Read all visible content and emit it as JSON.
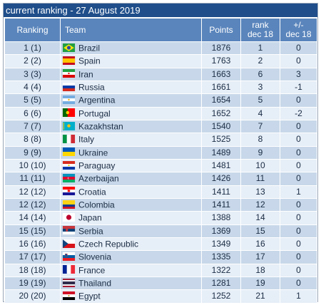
{
  "title": "current ranking - 27 August 2019",
  "columns": {
    "ranking": "Ranking",
    "team": "Team",
    "points": "Points",
    "rank_line1": "rank",
    "rank_line2": "dec 18",
    "change_line1": "+/-",
    "change_line2": "dec 18"
  },
  "rows": [
    {
      "ranking": "1 (1)",
      "team": "Brazil",
      "points": "1876",
      "rank": "1",
      "change": "0",
      "flag": "brazil-flag-icon"
    },
    {
      "ranking": "2 (2)",
      "team": "Spain",
      "points": "1763",
      "rank": "2",
      "change": "0",
      "flag": "spain-flag-icon"
    },
    {
      "ranking": "3 (3)",
      "team": "Iran",
      "points": "1663",
      "rank": "6",
      "change": "3",
      "flag": "iran-flag-icon"
    },
    {
      "ranking": "4 (4)",
      "team": "Russia",
      "points": "1661",
      "rank": "3",
      "change": "-1",
      "flag": "russia-flag-icon"
    },
    {
      "ranking": "5 (5)",
      "team": "Argentina",
      "points": "1654",
      "rank": "5",
      "change": "0",
      "flag": "argentina-flag-icon"
    },
    {
      "ranking": "6 (6)",
      "team": "Portugal",
      "points": "1652",
      "rank": "4",
      "change": "-2",
      "flag": "portugal-flag-icon"
    },
    {
      "ranking": "7 (7)",
      "team": "Kazakhstan",
      "points": "1540",
      "rank": "7",
      "change": "0",
      "flag": "kazakhstan-flag-icon"
    },
    {
      "ranking": "8 (8)",
      "team": "Italy",
      "points": "1525",
      "rank": "8",
      "change": "0",
      "flag": "italy-flag-icon"
    },
    {
      "ranking": "9 (9)",
      "team": "Ukraine",
      "points": "1489",
      "rank": "9",
      "change": "0",
      "flag": "ukraine-flag-icon"
    },
    {
      "ranking": "10 (10)",
      "team": "Paraguay",
      "points": "1481",
      "rank": "10",
      "change": "0",
      "flag": "paraguay-flag-icon"
    },
    {
      "ranking": "11 (11)",
      "team": "Azerbaijan",
      "points": "1426",
      "rank": "11",
      "change": "0",
      "flag": "azerbaijan-flag-icon"
    },
    {
      "ranking": "12 (12)",
      "team": "Croatia",
      "points": "1411",
      "rank": "13",
      "change": "1",
      "flag": "croatia-flag-icon"
    },
    {
      "ranking": "12 (12)",
      "team": "Colombia",
      "points": "1411",
      "rank": "12",
      "change": "0",
      "flag": "colombia-flag-icon"
    },
    {
      "ranking": "14 (14)",
      "team": "Japan",
      "points": "1388",
      "rank": "14",
      "change": "0",
      "flag": "japan-flag-icon"
    },
    {
      "ranking": "15 (15)",
      "team": "Serbia",
      "points": "1369",
      "rank": "15",
      "change": "0",
      "flag": "serbia-flag-icon"
    },
    {
      "ranking": "16 (16)",
      "team": "Czech Republic",
      "points": "1349",
      "rank": "16",
      "change": "0",
      "flag": "czech-flag-icon"
    },
    {
      "ranking": "17 (17)",
      "team": "Slovenia",
      "points": "1335",
      "rank": "17",
      "change": "0",
      "flag": "slovenia-flag-icon"
    },
    {
      "ranking": "18 (18)",
      "team": "France",
      "points": "1322",
      "rank": "18",
      "change": "0",
      "flag": "france-flag-icon"
    },
    {
      "ranking": "19 (19)",
      "team": "Thailand",
      "points": "1281",
      "rank": "19",
      "change": "0",
      "flag": "thailand-flag-icon"
    },
    {
      "ranking": "20 (20)",
      "team": "Egypt",
      "points": "1252",
      "rank": "21",
      "change": "1",
      "flag": "egypt-flag-icon"
    }
  ],
  "colors": {
    "title_bar": "#1f4e8a",
    "header": "#5a85bc",
    "row_odd": "#c8d8ea",
    "row_even": "#e6eef7"
  }
}
